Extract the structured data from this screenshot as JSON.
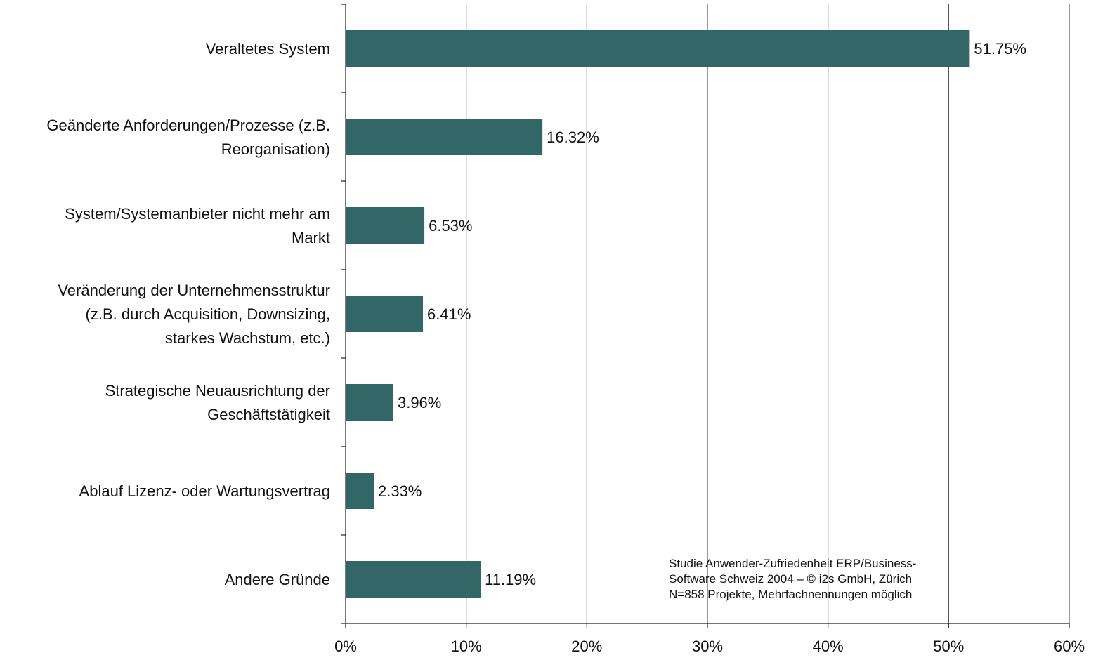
{
  "chart_data": {
    "type": "bar",
    "orientation": "horizontal",
    "categories": [
      [
        "Veraltetes System"
      ],
      [
        "Geänderte Anforderungen/Prozesse (z.B.",
        "Reorganisation)"
      ],
      [
        "System/Systemanbieter nicht mehr am",
        "Markt"
      ],
      [
        "Veränderung der Unternehmensstruktur",
        "(z.B. durch Acquisition, Downsizing,",
        "starkes Wachstum, etc.)"
      ],
      [
        "Strategische Neuausrichtung der",
        "Geschäftstätigkeit"
      ],
      [
        "Ablauf Lizenz- oder Wartungsvertrag"
      ],
      [
        "Andere Gründe"
      ]
    ],
    "values": [
      51.75,
      16.32,
      6.53,
      6.41,
      3.96,
      2.33,
      11.19
    ],
    "value_labels": [
      "51.75%",
      "16.32%",
      "6.53%",
      "6.41%",
      "3.96%",
      "2.33%",
      "11.19%"
    ],
    "xlim": [
      0,
      60
    ],
    "x_ticks": [
      0,
      10,
      20,
      30,
      40,
      50,
      60
    ],
    "x_tick_labels": [
      "0%",
      "10%",
      "20%",
      "30%",
      "40%",
      "50%",
      "60%"
    ],
    "grid": "vertical",
    "legend": "none",
    "bar_color": "#336666",
    "annotation": [
      "Studie Anwender-Zufriedenheit ERP/Business-",
      "Software Schweiz 2004 – © i2s GmbH, Zürich",
      "N=858 Projekte, Mehrfachnennungen möglich"
    ]
  }
}
